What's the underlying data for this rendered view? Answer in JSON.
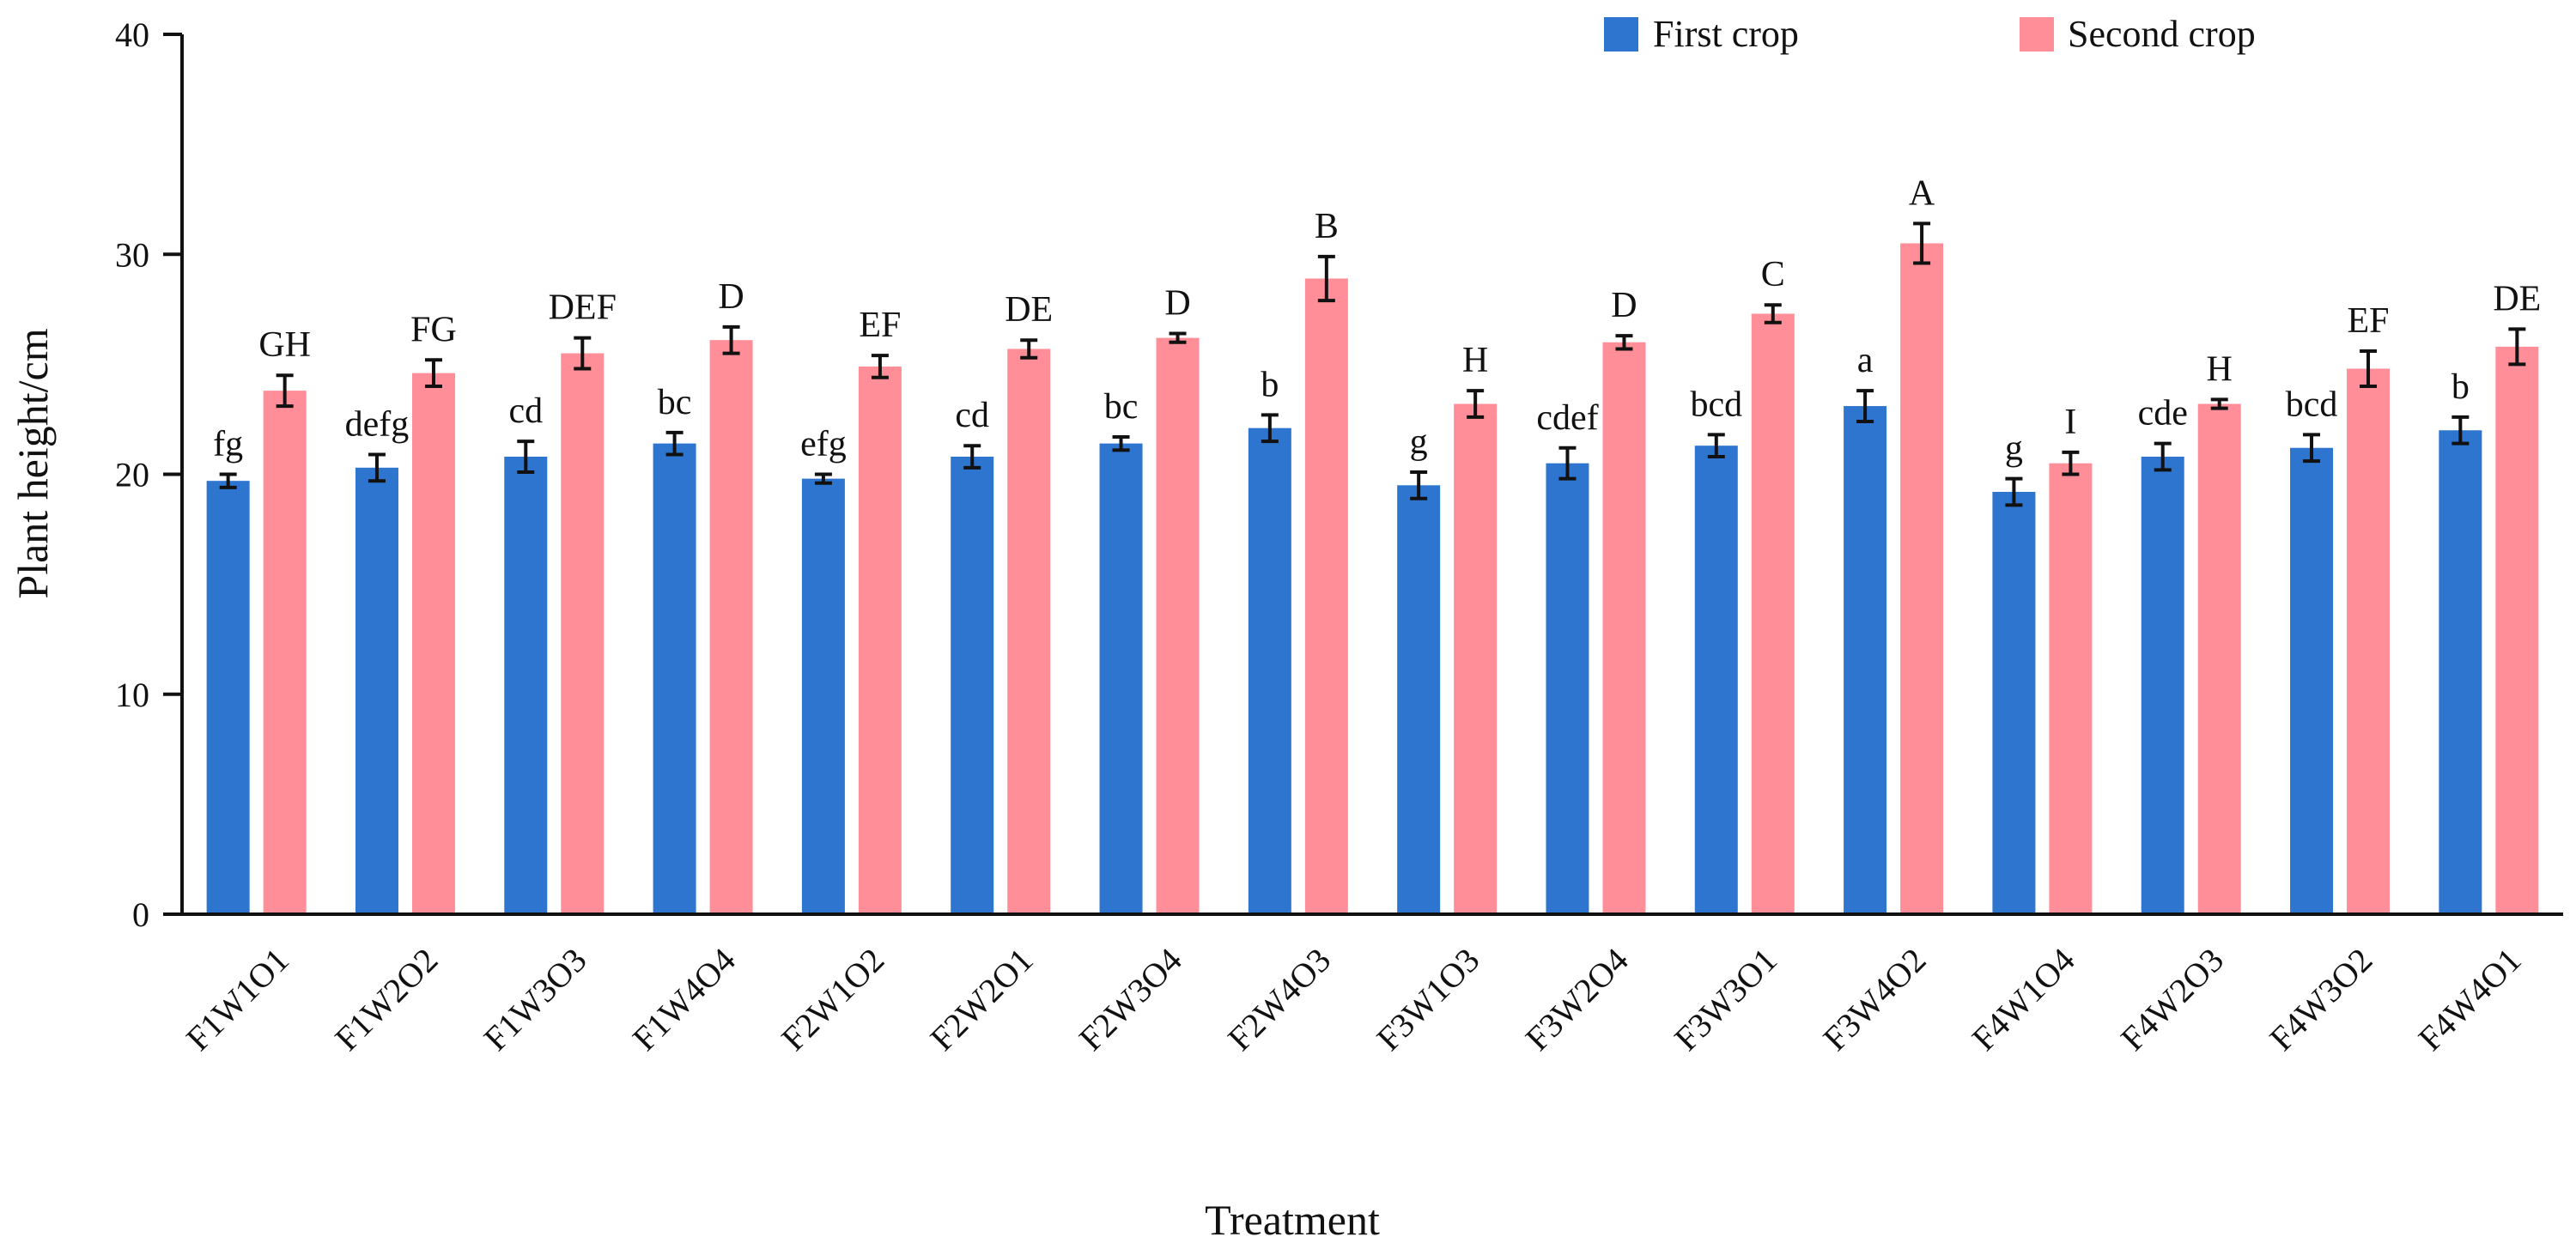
{
  "chart_data": {
    "type": "bar",
    "title": "",
    "xlabel": "Treatment",
    "ylabel": "Plant height/cm",
    "ylim": [
      0,
      40
    ],
    "yticks": [
      0,
      10,
      20,
      30,
      40
    ],
    "legend_position": "top-right",
    "categories": [
      "F1W1O1",
      "F1W2O2",
      "F1W3O3",
      "F1W4O4",
      "F2W1O2",
      "F2W2O1",
      "F2W3O4",
      "F2W4O3",
      "F3W1O3",
      "F3W2O4",
      "F3W3O1",
      "F3W4O2",
      "F4W1O4",
      "F4W2O3",
      "F4W3O2",
      "F4W4O1"
    ],
    "series": [
      {
        "name": "First crop",
        "color": "#2E75D0",
        "values": [
          19.7,
          20.3,
          20.8,
          21.4,
          19.8,
          20.8,
          21.4,
          22.1,
          19.5,
          20.5,
          21.3,
          23.1,
          19.2,
          20.8,
          21.2,
          22.0
        ],
        "errors": [
          0.3,
          0.6,
          0.7,
          0.5,
          0.2,
          0.5,
          0.3,
          0.6,
          0.6,
          0.7,
          0.5,
          0.7,
          0.6,
          0.6,
          0.6,
          0.6
        ],
        "labels": [
          "fg",
          "defg",
          "cd",
          "bc",
          "efg",
          "cd",
          "bc",
          "b",
          "g",
          "cdef",
          "bcd",
          "a",
          "g",
          "cde",
          "bcd",
          "b"
        ]
      },
      {
        "name": "Second crop",
        "color": "#FF8E99",
        "values": [
          23.8,
          24.6,
          25.5,
          26.1,
          24.9,
          25.7,
          26.2,
          28.9,
          23.2,
          26.0,
          27.3,
          30.5,
          20.5,
          23.2,
          24.8,
          25.8
        ],
        "errors": [
          0.7,
          0.6,
          0.7,
          0.6,
          0.5,
          0.4,
          0.2,
          1.0,
          0.6,
          0.3,
          0.4,
          0.9,
          0.5,
          0.2,
          0.8,
          0.8
        ],
        "labels": [
          "GH",
          "FG",
          "DEF",
          "D",
          "EF",
          "DE",
          "D",
          "B",
          "H",
          "D",
          "C",
          "A",
          "I",
          "H",
          "EF",
          "DE"
        ]
      }
    ]
  }
}
